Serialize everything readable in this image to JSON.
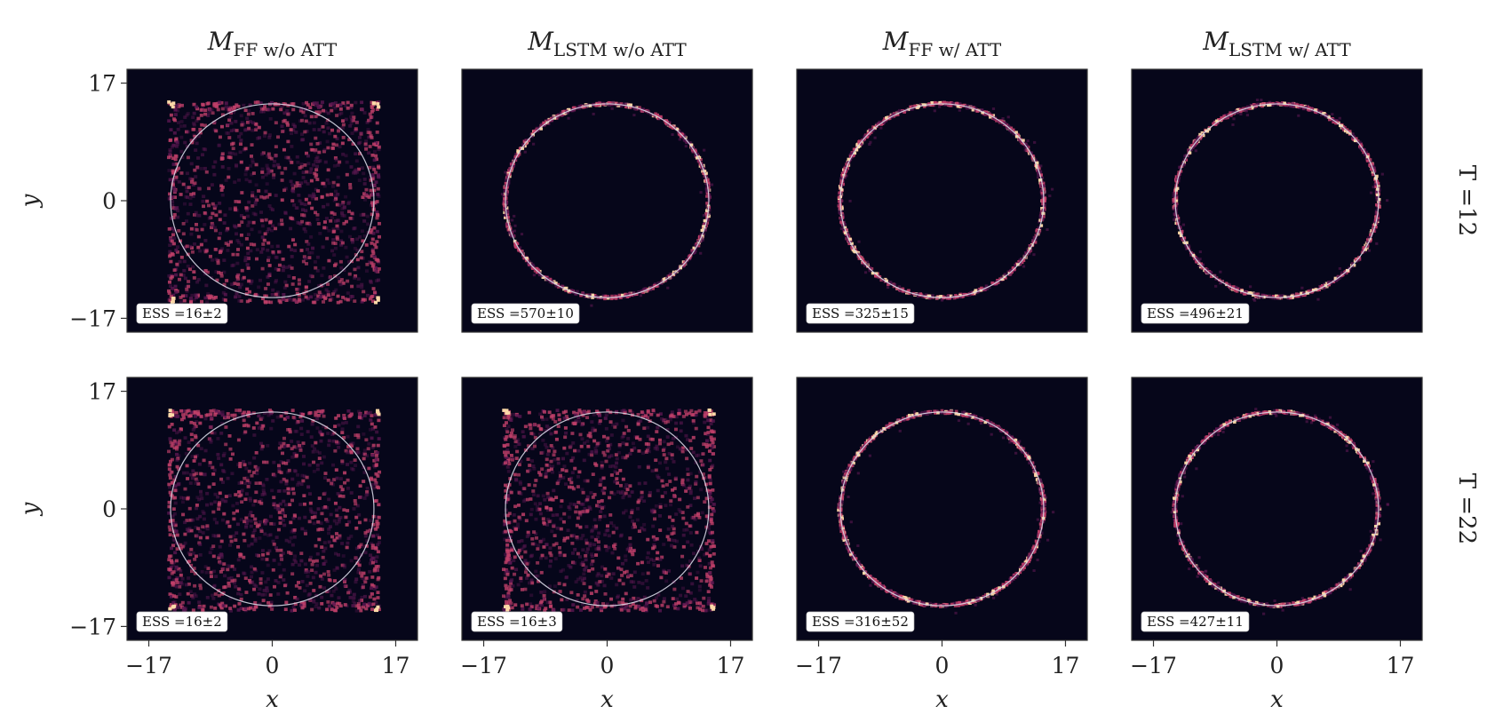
{
  "chart_data": {
    "type": "heatmap",
    "x_ticks": [
      "−17",
      "0",
      "17"
    ],
    "y_ticks": [
      "17",
      "0",
      "−17"
    ],
    "x_tick_values": [
      -17,
      0,
      17
    ],
    "y_tick_values": [
      17,
      0,
      -17
    ],
    "xlim": [
      -20,
      20
    ],
    "ylim": [
      -19,
      19
    ],
    "xlabel": "x",
    "ylabel": "y",
    "target_circle_radius": 14,
    "sampling_box_half_width": 14.5,
    "colors": {
      "background": "#06061a",
      "low": "#5a1750",
      "mid": "#c2406a",
      "high": "#fcd9a8",
      "circle": "#d8d8e6"
    },
    "columns": [
      {
        "title_main": "M",
        "title_sub": "FF w/o ATT"
      },
      {
        "title_main": "M",
        "title_sub": "LSTM w/o ATT"
      },
      {
        "title_main": "M",
        "title_sub": "FF w/ ATT"
      },
      {
        "title_main": "M",
        "title_sub": "LSTM w/ ATT"
      }
    ],
    "rows": [
      {
        "label": "T =12"
      },
      {
        "label": "T =22"
      }
    ],
    "panels": [
      {
        "row": 0,
        "col": 0,
        "ess": "ESS =16±2",
        "pattern": "uniform"
      },
      {
        "row": 0,
        "col": 1,
        "ess": "ESS =570±10",
        "pattern": "ring"
      },
      {
        "row": 0,
        "col": 2,
        "ess": "ESS =325±15",
        "pattern": "ring"
      },
      {
        "row": 0,
        "col": 3,
        "ess": "ESS =496±21",
        "pattern": "ring"
      },
      {
        "row": 1,
        "col": 0,
        "ess": "ESS =16±2",
        "pattern": "uniform"
      },
      {
        "row": 1,
        "col": 1,
        "ess": "ESS =16±3",
        "pattern": "uniform"
      },
      {
        "row": 1,
        "col": 2,
        "ess": "ESS =316±52",
        "pattern": "ring"
      },
      {
        "row": 1,
        "col": 3,
        "ess": "ESS =427±11",
        "pattern": "ring"
      }
    ]
  }
}
